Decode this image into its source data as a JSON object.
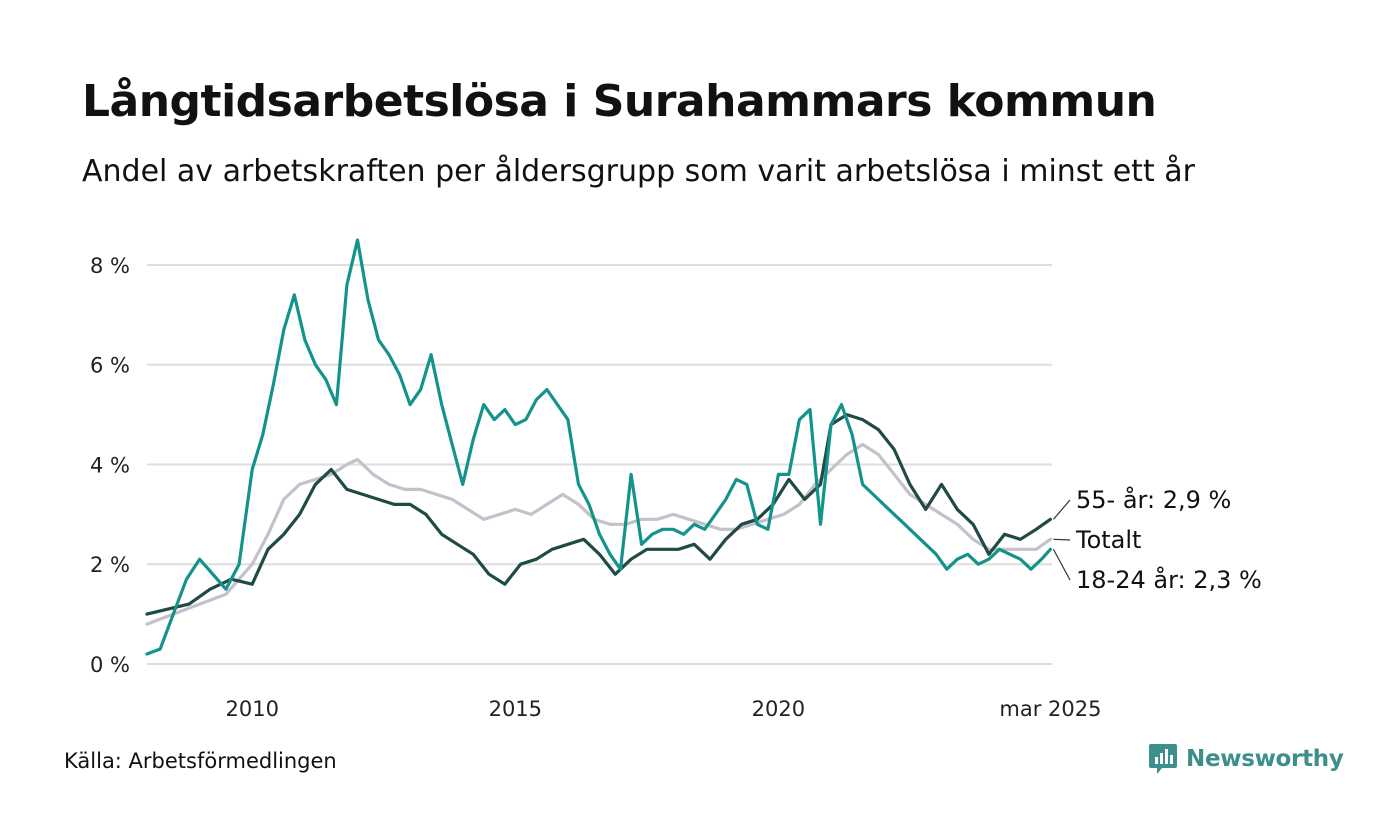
{
  "title": "Långtidsarbetslösa i Surahammars kommun",
  "subtitle": "Andel av arbetskraften per åldersgrupp som varit arbetslösa i minst ett år",
  "source": "Källa: Arbetsförmedlingen",
  "brand": {
    "name": "Newsworthy",
    "icon": "newsworthy-logo-icon",
    "color": "#3d8f8c"
  },
  "chart_data": {
    "type": "line",
    "title": "",
    "xlabel": "",
    "ylabel": "",
    "xlim": [
      2008.0,
      2025.2
    ],
    "ylim": [
      0,
      8.5
    ],
    "grid": true,
    "legend": "direct-labels-right",
    "yticks": [
      {
        "value": 0,
        "label": "0 %"
      },
      {
        "value": 2,
        "label": "2 %"
      },
      {
        "value": 4,
        "label": "4 %"
      },
      {
        "value": 6,
        "label": "6 %"
      },
      {
        "value": 8,
        "label": "8 %"
      }
    ],
    "xticks": [
      {
        "value": 2010,
        "label": "2010"
      },
      {
        "value": 2015,
        "label": "2015"
      },
      {
        "value": 2020,
        "label": "2020"
      },
      {
        "value": 2025.17,
        "label": "mar 2025"
      }
    ],
    "end_labels": [
      {
        "series": "55",
        "text": "55- år: 2,9 %"
      },
      {
        "series": "total",
        "text": "Totalt"
      },
      {
        "series": "18-24",
        "text": "18-24 år: 2,3 %"
      }
    ],
    "series": [
      {
        "id": "total",
        "color": "#c4c0cc",
        "x": [
          2008.0,
          2008.5,
          2009.0,
          2009.5,
          2010.0,
          2010.3,
          2010.6,
          2010.9,
          2011.2,
          2011.5,
          2011.8,
          2012.0,
          2012.3,
          2012.6,
          2012.9,
          2013.2,
          2013.5,
          2013.8,
          2014.1,
          2014.4,
          2014.7,
          2015.0,
          2015.3,
          2015.6,
          2015.9,
          2016.2,
          2016.5,
          2016.8,
          2017.1,
          2017.4,
          2017.7,
          2018.0,
          2018.3,
          2018.6,
          2018.9,
          2019.2,
          2019.5,
          2019.8,
          2020.1,
          2020.4,
          2020.7,
          2021.0,
          2021.3,
          2021.6,
          2021.9,
          2022.2,
          2022.5,
          2022.8,
          2023.1,
          2023.4,
          2023.7,
          2024.0,
          2024.3,
          2024.6,
          2024.9,
          2025.17
        ],
        "values": [
          0.8,
          1.0,
          1.2,
          1.4,
          2.0,
          2.6,
          3.3,
          3.6,
          3.7,
          3.8,
          4.0,
          4.1,
          3.8,
          3.6,
          3.5,
          3.5,
          3.4,
          3.3,
          3.1,
          2.9,
          3.0,
          3.1,
          3.0,
          3.2,
          3.4,
          3.2,
          2.9,
          2.8,
          2.8,
          2.9,
          2.9,
          3.0,
          2.9,
          2.8,
          2.7,
          2.7,
          2.8,
          2.9,
          3.0,
          3.2,
          3.6,
          3.9,
          4.2,
          4.4,
          4.2,
          3.8,
          3.4,
          3.2,
          3.0,
          2.8,
          2.5,
          2.3,
          2.3,
          2.3,
          2.3,
          2.5
        ]
      },
      {
        "id": "55",
        "color": "#1f4a45",
        "x": [
          2008.0,
          2008.4,
          2008.8,
          2009.2,
          2009.6,
          2010.0,
          2010.3,
          2010.6,
          2010.9,
          2011.2,
          2011.5,
          2011.8,
          2012.1,
          2012.4,
          2012.7,
          2013.0,
          2013.3,
          2013.6,
          2013.9,
          2014.2,
          2014.5,
          2014.8,
          2015.1,
          2015.4,
          2015.7,
          2016.0,
          2016.3,
          2016.6,
          2016.9,
          2017.2,
          2017.5,
          2017.8,
          2018.1,
          2018.4,
          2018.7,
          2019.0,
          2019.3,
          2019.6,
          2019.9,
          2020.2,
          2020.5,
          2020.8,
          2021.0,
          2021.3,
          2021.6,
          2021.9,
          2022.2,
          2022.5,
          2022.8,
          2023.1,
          2023.4,
          2023.7,
          2024.0,
          2024.3,
          2024.6,
          2024.9,
          2025.17
        ],
        "values": [
          1.0,
          1.1,
          1.2,
          1.5,
          1.7,
          1.6,
          2.3,
          2.6,
          3.0,
          3.6,
          3.9,
          3.5,
          3.4,
          3.3,
          3.2,
          3.2,
          3.0,
          2.6,
          2.4,
          2.2,
          1.8,
          1.6,
          2.0,
          2.1,
          2.3,
          2.4,
          2.5,
          2.2,
          1.8,
          2.1,
          2.3,
          2.3,
          2.3,
          2.4,
          2.1,
          2.5,
          2.8,
          2.9,
          3.2,
          3.7,
          3.3,
          3.6,
          4.8,
          5.0,
          4.9,
          4.7,
          4.3,
          3.6,
          3.1,
          3.6,
          3.1,
          2.8,
          2.2,
          2.6,
          2.5,
          2.7,
          2.9
        ]
      },
      {
        "id": "18-24",
        "color": "#14938a",
        "x": [
          2008.0,
          2008.25,
          2008.5,
          2008.75,
          2009.0,
          2009.25,
          2009.5,
          2009.75,
          2010.0,
          2010.2,
          2010.4,
          2010.6,
          2010.8,
          2011.0,
          2011.2,
          2011.4,
          2011.6,
          2011.8,
          2012.0,
          2012.2,
          2012.4,
          2012.6,
          2012.8,
          2013.0,
          2013.2,
          2013.4,
          2013.6,
          2013.8,
          2014.0,
          2014.2,
          2014.4,
          2014.6,
          2014.8,
          2015.0,
          2015.2,
          2015.4,
          2015.6,
          2015.8,
          2016.0,
          2016.2,
          2016.4,
          2016.6,
          2016.8,
          2017.0,
          2017.2,
          2017.4,
          2017.6,
          2017.8,
          2018.0,
          2018.2,
          2018.4,
          2018.6,
          2018.8,
          2019.0,
          2019.2,
          2019.4,
          2019.6,
          2019.8,
          2020.0,
          2020.2,
          2020.4,
          2020.6,
          2020.8,
          2021.0,
          2021.2,
          2021.4,
          2021.6,
          2021.8,
          2022.0,
          2022.2,
          2022.4,
          2022.6,
          2022.8,
          2023.0,
          2023.2,
          2023.4,
          2023.6,
          2023.8,
          2024.0,
          2024.2,
          2024.4,
          2024.6,
          2024.8,
          2025.0,
          2025.17
        ],
        "values": [
          0.2,
          0.3,
          1.0,
          1.7,
          2.1,
          1.8,
          1.5,
          2.0,
          3.9,
          4.6,
          5.6,
          6.7,
          7.4,
          6.5,
          6.0,
          5.7,
          5.2,
          7.6,
          8.5,
          7.3,
          6.5,
          6.2,
          5.8,
          5.2,
          5.5,
          6.2,
          5.2,
          4.4,
          3.6,
          4.5,
          5.2,
          4.9,
          5.1,
          4.8,
          4.9,
          5.3,
          5.5,
          5.2,
          4.9,
          3.6,
          3.2,
          2.6,
          2.2,
          1.9,
          3.8,
          2.4,
          2.6,
          2.7,
          2.7,
          2.6,
          2.8,
          2.7,
          3.0,
          3.3,
          3.7,
          3.6,
          2.8,
          2.7,
          3.8,
          3.8,
          4.9,
          5.1,
          2.8,
          4.8,
          5.2,
          4.6,
          3.6,
          3.4,
          3.2,
          3.0,
          2.8,
          2.6,
          2.4,
          2.2,
          1.9,
          2.1,
          2.2,
          2.0,
          2.1,
          2.3,
          2.2,
          2.1,
          1.9,
          2.1,
          2.3
        ]
      }
    ]
  }
}
